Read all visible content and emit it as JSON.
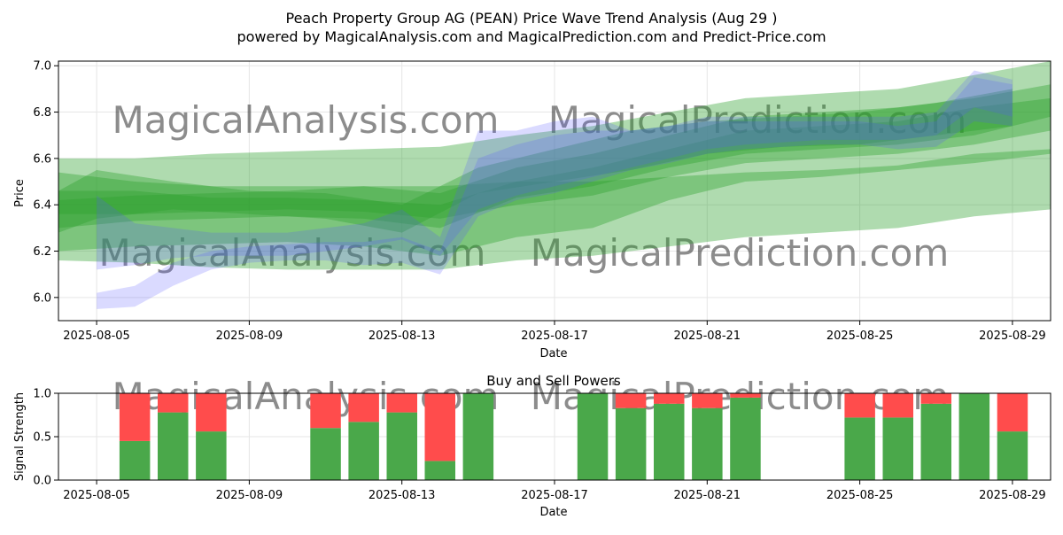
{
  "header": {
    "title": "Peach Property Group AG (PEAN) Price Wave Trend Analysis (Aug 29 )",
    "subtitle": "powered by MagicalAnalysis.com and MagicalPrediction.com and Predict-Price.com"
  },
  "watermarks": [
    "MagicalAnalysis.com",
    "MagicalPrediction.com"
  ],
  "colors": {
    "band_green": "#2ca02c",
    "band_blue": "#5555ff",
    "buy": "#4aa84a",
    "sell": "#ff4c4c",
    "grid": "#e6e6e6"
  },
  "chart_data": [
    {
      "type": "area",
      "title": "",
      "xlabel": "Date",
      "ylabel": "Price",
      "xlim": [
        "2025-08-04",
        "2025-08-30"
      ],
      "ylim": [
        5.9,
        7.02
      ],
      "x_ticks": [
        "2025-08-05",
        "2025-08-09",
        "2025-08-13",
        "2025-08-17",
        "2025-08-21",
        "2025-08-25",
        "2025-08-29"
      ],
      "y_ticks": [
        6.0,
        6.2,
        6.4,
        6.6,
        6.8,
        7.0
      ],
      "grid": true,
      "series": [
        {
          "color": "green",
          "x": [
            "2025-08-04",
            "2025-08-06",
            "2025-08-08",
            "2025-08-10",
            "2025-08-12",
            "2025-08-14",
            "2025-08-16",
            "2025-08-18",
            "2025-08-20",
            "2025-08-22",
            "2025-08-24",
            "2025-08-26",
            "2025-08-28",
            "2025-08-30"
          ],
          "lower": [
            6.36,
            6.36,
            6.37,
            6.38,
            6.37,
            6.34,
            6.4,
            6.44,
            6.52,
            6.58,
            6.6,
            6.62,
            6.66,
            6.72
          ],
          "upper": [
            6.46,
            6.46,
            6.43,
            6.43,
            6.42,
            6.4,
            6.5,
            6.56,
            6.64,
            6.72,
            6.74,
            6.76,
            6.82,
            6.86
          ]
        },
        {
          "color": "green",
          "x": [
            "2025-08-04",
            "2025-08-06",
            "2025-08-08",
            "2025-08-10",
            "2025-08-12",
            "2025-08-14",
            "2025-08-16",
            "2025-08-18",
            "2025-08-20",
            "2025-08-22",
            "2025-08-24",
            "2025-08-26",
            "2025-08-28",
            "2025-08-30"
          ],
          "lower": [
            6.3,
            6.33,
            6.34,
            6.35,
            6.34,
            6.3,
            6.43,
            6.48,
            6.56,
            6.62,
            6.64,
            6.66,
            6.7,
            6.78
          ],
          "upper": [
            6.54,
            6.5,
            6.48,
            6.48,
            6.48,
            6.45,
            6.56,
            6.62,
            6.7,
            6.78,
            6.8,
            6.82,
            6.86,
            6.92
          ]
        },
        {
          "color": "green",
          "x": [
            "2025-08-04",
            "2025-08-06",
            "2025-08-08",
            "2025-08-10",
            "2025-08-12",
            "2025-08-14",
            "2025-08-16",
            "2025-08-18",
            "2025-08-20",
            "2025-08-22",
            "2025-08-24",
            "2025-08-26",
            "2025-08-28",
            "2025-08-30"
          ],
          "lower": [
            6.2,
            6.22,
            6.23,
            6.24,
            6.22,
            6.18,
            6.26,
            6.3,
            6.42,
            6.5,
            6.52,
            6.55,
            6.58,
            6.62
          ],
          "upper": [
            6.6,
            6.6,
            6.62,
            6.63,
            6.64,
            6.65,
            6.7,
            6.74,
            6.8,
            6.86,
            6.88,
            6.9,
            6.96,
            7.02
          ]
        },
        {
          "color": "green",
          "x": [
            "2025-08-04",
            "2025-08-06",
            "2025-08-08",
            "2025-08-10",
            "2025-08-12",
            "2025-08-14",
            "2025-08-16",
            "2025-08-18",
            "2025-08-20",
            "2025-08-22",
            "2025-08-24",
            "2025-08-26",
            "2025-08-28",
            "2025-08-30"
          ],
          "lower": [
            6.16,
            6.15,
            6.13,
            6.12,
            6.12,
            6.12,
            6.16,
            6.18,
            6.22,
            6.26,
            6.28,
            6.3,
            6.35,
            6.38
          ],
          "upper": [
            6.42,
            6.44,
            6.45,
            6.46,
            6.48,
            6.48,
            6.5,
            6.5,
            6.52,
            6.54,
            6.55,
            6.57,
            6.62,
            6.64
          ]
        },
        {
          "color": "green",
          "x": [
            "2025-08-04",
            "2025-08-05",
            "2025-08-07",
            "2025-08-09",
            "2025-08-11",
            "2025-08-13",
            "2025-08-15",
            "2025-08-17",
            "2025-08-19",
            "2025-08-21",
            "2025-08-23",
            "2025-08-25",
            "2025-08-27",
            "2025-08-29"
          ],
          "lower": [
            6.28,
            6.34,
            6.38,
            6.36,
            6.34,
            6.28,
            6.45,
            6.5,
            6.55,
            6.62,
            6.65,
            6.66,
            6.7,
            6.74
          ],
          "upper": [
            6.46,
            6.55,
            6.5,
            6.46,
            6.45,
            6.4,
            6.56,
            6.64,
            6.72,
            6.76,
            6.78,
            6.8,
            6.84,
            6.9
          ]
        },
        {
          "color": "blue",
          "x": [
            "2025-08-05",
            "2025-08-06",
            "2025-08-07",
            "2025-08-08",
            "2025-08-09",
            "2025-08-10",
            "2025-08-11",
            "2025-08-12",
            "2025-08-13",
            "2025-08-14",
            "2025-08-15",
            "2025-08-16",
            "2025-08-17",
            "2025-08-18",
            "2025-08-19",
            "2025-08-20",
            "2025-08-21",
            "2025-08-22",
            "2025-08-23",
            "2025-08-24",
            "2025-08-25",
            "2025-08-26",
            "2025-08-27",
            "2025-08-28",
            "2025-08-29"
          ],
          "lower": [
            5.95,
            5.96,
            6.05,
            6.12,
            6.15,
            6.16,
            6.16,
            6.14,
            6.15,
            6.1,
            6.35,
            6.42,
            6.45,
            6.5,
            6.55,
            6.58,
            6.62,
            6.64,
            6.65,
            6.66,
            6.66,
            6.64,
            6.65,
            6.76,
            6.74
          ],
          "upper": [
            6.02,
            6.05,
            6.15,
            6.2,
            6.22,
            6.23,
            6.24,
            6.24,
            6.26,
            6.2,
            6.6,
            6.66,
            6.7,
            6.72,
            6.72,
            6.74,
            6.76,
            6.76,
            6.76,
            6.76,
            6.76,
            6.74,
            6.76,
            6.95,
            6.92
          ]
        },
        {
          "color": "blue",
          "x": [
            "2025-08-05",
            "2025-08-06",
            "2025-08-07",
            "2025-08-08",
            "2025-08-09",
            "2025-08-10",
            "2025-08-11",
            "2025-08-12",
            "2025-08-13",
            "2025-08-14",
            "2025-08-15",
            "2025-08-16",
            "2025-08-17",
            "2025-08-18",
            "2025-08-19",
            "2025-08-20",
            "2025-08-21",
            "2025-08-22",
            "2025-08-23",
            "2025-08-24",
            "2025-08-25",
            "2025-08-26",
            "2025-08-27",
            "2025-08-28",
            "2025-08-29"
          ],
          "lower": [
            6.12,
            6.14,
            6.17,
            6.18,
            6.18,
            6.18,
            6.2,
            6.22,
            6.25,
            6.18,
            6.38,
            6.44,
            6.48,
            6.52,
            6.56,
            6.6,
            6.64,
            6.66,
            6.67,
            6.68,
            6.68,
            6.68,
            6.7,
            6.82,
            6.78
          ],
          "upper": [
            6.44,
            6.32,
            6.3,
            6.28,
            6.28,
            6.28,
            6.3,
            6.32,
            6.38,
            6.26,
            6.72,
            6.72,
            6.76,
            6.78,
            6.72,
            6.74,
            6.78,
            6.78,
            6.78,
            6.78,
            6.78,
            6.78,
            6.8,
            6.98,
            6.94
          ]
        }
      ]
    },
    {
      "type": "bar",
      "title": "Buy and Sell Powers",
      "xlabel": "Date",
      "ylabel": "Signal Strength",
      "ylim": [
        0.0,
        1.0
      ],
      "xlim": [
        "2025-08-04",
        "2025-08-30"
      ],
      "x_ticks": [
        "2025-08-05",
        "2025-08-09",
        "2025-08-13",
        "2025-08-17",
        "2025-08-21",
        "2025-08-25",
        "2025-08-29"
      ],
      "y_ticks": [
        0.0,
        0.5,
        1.0
      ],
      "grid": true,
      "categories": [
        "2025-08-06",
        "2025-08-07",
        "2025-08-08",
        "2025-08-11",
        "2025-08-12",
        "2025-08-13",
        "2025-08-14",
        "2025-08-15",
        "2025-08-18",
        "2025-08-19",
        "2025-08-20",
        "2025-08-21",
        "2025-08-22",
        "2025-08-25",
        "2025-08-26",
        "2025-08-27",
        "2025-08-28",
        "2025-08-29"
      ],
      "series": [
        {
          "name": "Buy",
          "values": [
            0.45,
            0.78,
            0.56,
            0.6,
            0.67,
            0.78,
            0.22,
            1.0,
            1.0,
            0.83,
            0.88,
            0.83,
            0.95,
            0.72,
            0.72,
            0.88,
            1.0,
            0.56
          ]
        },
        {
          "name": "Sell",
          "values": [
            0.55,
            0.22,
            0.44,
            0.4,
            0.33,
            0.22,
            0.78,
            0.0,
            0.0,
            0.17,
            0.12,
            0.17,
            0.05,
            0.28,
            0.28,
            0.12,
            0.0,
            0.44
          ]
        }
      ]
    }
  ]
}
